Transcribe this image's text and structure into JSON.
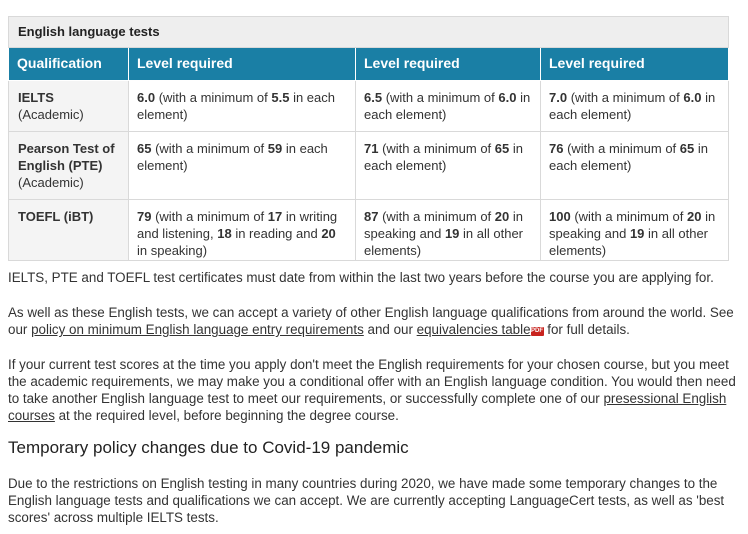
{
  "table": {
    "caption": "English language tests",
    "headers": [
      "Qualification",
      "Level required",
      "Level required",
      "Level required"
    ],
    "rows": [
      {
        "qual_name": "IELTS",
        "qual_sub": "(Academic)",
        "cells": [
          {
            "a": "6.0",
            "b": " (with a minimum of ",
            "c": "5.5",
            "d": " in each element)"
          },
          {
            "a": "6.5",
            "b": " (with a minimum of ",
            "c": "6.0",
            "d": " in each element)"
          },
          {
            "a": "7.0",
            "b": " (with a minimum of ",
            "c": "6.0",
            "d": " in each element)"
          }
        ]
      },
      {
        "qual_name": "Pearson Test of English (PTE)",
        "qual_sub": "(Academic)",
        "cells": [
          {
            "a": "65",
            "b": " (with a minimum of ",
            "c": "59",
            "d": " in each element)"
          },
          {
            "a": "71",
            "b": " (with a minimum of ",
            "c": "65",
            "d": " in each element)"
          },
          {
            "a": "76",
            "b": " (with a minimum of ",
            "c": "65",
            "d": " in each element)"
          }
        ]
      },
      {
        "qual_name": "TOEFL (iBT)",
        "qual_sub": "",
        "cells": [
          {
            "parts": [
              "79",
              " (with a minimum of ",
              "17",
              " in writing and listening, ",
              "18",
              " in reading and ",
              "20",
              " in speaking)"
            ]
          },
          {
            "parts": [
              "87",
              " (with a minimum of ",
              "20",
              " in speaking and ",
              "19",
              " in all other elements)"
            ]
          },
          {
            "parts": [
              "100",
              " (with a minimum of ",
              "20",
              " in speaking and ",
              "19",
              " in all other elements)"
            ]
          }
        ]
      }
    ]
  },
  "p1": "IELTS, PTE and TOEFL test certificates must date from within the last two years before the course you are applying for.",
  "p2": {
    "t1": "As well as these English tests, we can accept a variety of other English language qualifications from around the world. See our ",
    "link1": "policy on minimum English language entry requirements",
    "t2": " and our ",
    "link2": "equivalencies table",
    "pdf": "PDF",
    "t3": " for full details."
  },
  "p3": {
    "t1": "If your current test scores at the time you apply don't meet the English requirements for your chosen course, but you meet the academic requirements, we may make you a conditional offer with an English language condition. You would then need to take another English language test to meet our requirements, or successfully complete one of our ",
    "link": "presessional English courses",
    "t2": " at the required level, before beginning the degree course."
  },
  "heading": "Temporary policy changes due to Covid-19 pandemic",
  "p4": "Due to the restrictions on English testing in many countries during 2020, we have made some temporary changes to the English language tests and qualifications we can accept. We are currently accepting LanguageCert tests, as well as 'best scores' across multiple IELTS tests."
}
